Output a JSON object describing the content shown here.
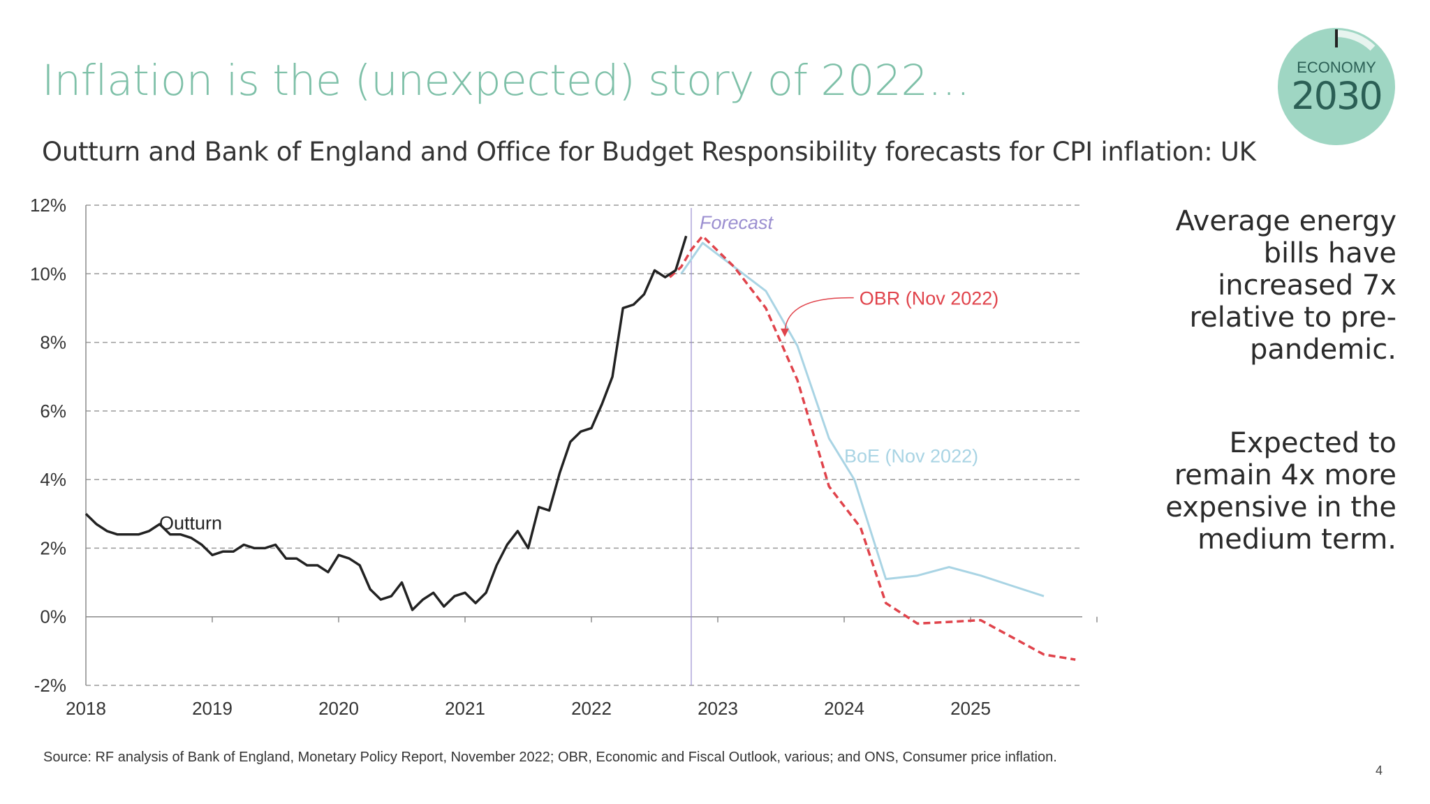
{
  "title": "Inflation is the (unexpected) story of 2022…",
  "subtitle": "Outturn and Bank of England and Office for Budget Responsibility forecasts for CPI inflation: UK",
  "logo": {
    "top": "ECONOMY",
    "year": "2030"
  },
  "side_text": {
    "p1": "Average energy bills have increased 7x relative to pre-pandemic.",
    "p2": "Expected to remain 4x more expensive in the medium term."
  },
  "source": "Source: RF analysis of Bank of England, Monetary Policy Report, November 2022; OBR, Economic and Fiscal Outlook, various; and ONS, Consumer price inflation.",
  "page_number": "4",
  "colors": {
    "title": "#7ec0a8",
    "outturn": "#222222",
    "obr": "#e0434b",
    "boe": "#a9d4e4",
    "forecast": "#9b8fd0",
    "grid": "#9a9a9a",
    "logo_bg": "#9fd6c3"
  },
  "chart_data": {
    "type": "line",
    "title": "Outturn and Bank of England and Office for Budget Responsibility forecasts for CPI inflation: UK",
    "xlabel": "",
    "ylabel": "",
    "xlim": [
      2018,
      2026
    ],
    "ylim": [
      -2,
      12
    ],
    "x_ticks": [
      "2018",
      "2019",
      "2020",
      "2021",
      "2022",
      "2023",
      "2024",
      "2025"
    ],
    "y_ticks": [
      {
        "value": 12,
        "label": "12%"
      },
      {
        "value": 10,
        "label": "10%"
      },
      {
        "value": 8,
        "label": "8%"
      },
      {
        "value": 6,
        "label": "6%"
      },
      {
        "value": 4,
        "label": "4%"
      },
      {
        "value": 2,
        "label": "2%"
      },
      {
        "value": 0,
        "label": "0%"
      },
      {
        "value": -2,
        "label": "-2%"
      }
    ],
    "grid": true,
    "forecast_marker": {
      "x": 2022.79,
      "label": "Forecast"
    },
    "series": [
      {
        "name": "Outturn",
        "label": "Outturn",
        "style": "solid",
        "x_start": 2018.0,
        "x_step": 0.08333,
        "values": [
          3.0,
          2.7,
          2.5,
          2.4,
          2.4,
          2.4,
          2.5,
          2.7,
          2.4,
          2.4,
          2.3,
          2.1,
          1.8,
          1.9,
          1.9,
          2.1,
          2.0,
          2.0,
          2.1,
          1.7,
          1.7,
          1.5,
          1.5,
          1.3,
          1.8,
          1.7,
          1.5,
          0.8,
          0.5,
          0.6,
          1.0,
          0.2,
          0.5,
          0.7,
          0.3,
          0.6,
          0.7,
          0.4,
          0.7,
          1.5,
          2.1,
          2.5,
          2.0,
          3.2,
          3.1,
          4.2,
          5.1,
          5.4,
          5.5,
          6.2,
          7.0,
          9.0,
          9.1,
          9.4,
          10.1,
          9.9,
          10.1,
          11.1
        ]
      },
      {
        "name": "OBR (Nov 2022)",
        "label": "OBR (Nov 2022)",
        "style": "dashed",
        "points": [
          [
            2022.62,
            9.9
          ],
          [
            2022.71,
            10.2
          ],
          [
            2022.79,
            10.7
          ],
          [
            2022.88,
            11.1
          ],
          [
            2023.13,
            10.2
          ],
          [
            2023.38,
            9.0
          ],
          [
            2023.63,
            6.9
          ],
          [
            2023.88,
            3.8
          ],
          [
            2024.13,
            2.6
          ],
          [
            2024.33,
            0.4
          ],
          [
            2024.58,
            -0.2
          ],
          [
            2024.83,
            -0.15
          ],
          [
            2025.08,
            -0.1
          ],
          [
            2025.33,
            -0.6
          ],
          [
            2025.58,
            -1.1
          ],
          [
            2025.83,
            -1.25
          ]
        ]
      },
      {
        "name": "BoE (Nov 2022)",
        "label": "BoE (Nov 2022)",
        "style": "solid",
        "points": [
          [
            2022.71,
            10.0
          ],
          [
            2022.88,
            10.9
          ],
          [
            2023.13,
            10.2
          ],
          [
            2023.38,
            9.5
          ],
          [
            2023.63,
            7.9
          ],
          [
            2023.88,
            5.2
          ],
          [
            2024.08,
            4.0
          ],
          [
            2024.33,
            1.1
          ],
          [
            2024.58,
            1.2
          ],
          [
            2024.83,
            1.45
          ],
          [
            2025.08,
            1.2
          ],
          [
            2025.33,
            0.9
          ],
          [
            2025.58,
            0.6
          ]
        ]
      }
    ],
    "annotations": [
      {
        "text": "Outturn",
        "x": 2018.58,
        "y": 2.75
      },
      {
        "text": "OBR (Nov 2022)",
        "x": 2024.12,
        "y": 9.3
      },
      {
        "text": "BoE (Nov 2022)",
        "x": 2024.0,
        "y": 4.7
      }
    ]
  }
}
